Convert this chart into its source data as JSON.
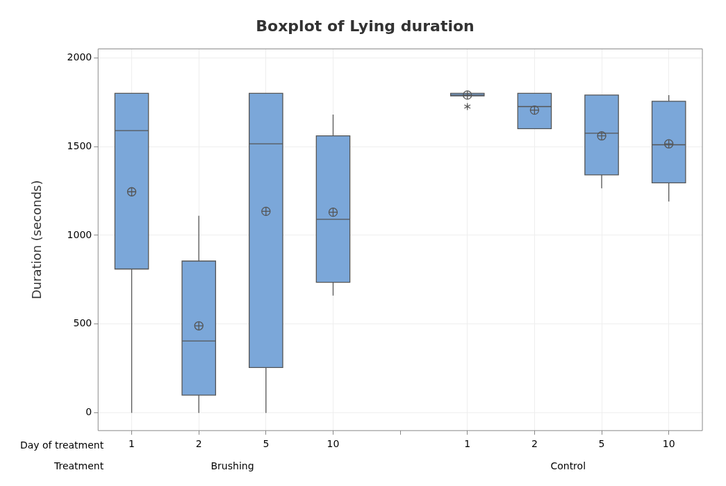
{
  "chart_data": {
    "type": "box",
    "title": "Boxplot of Lying duration",
    "ylabel": "Duration (seconds)",
    "categories": [
      "1",
      "2",
      "5",
      "10",
      null,
      "1",
      "2",
      "5",
      "10"
    ],
    "annotations": [
      "Day of treatment",
      "Treatment",
      "Brushing",
      "Control"
    ],
    "color": "#7ba7d9",
    "boxes": [
      {
        "low": 0,
        "q1": 810,
        "median": 1590,
        "q3": 1800,
        "high": 1800,
        "mean": 1245
      },
      {
        "low": 0,
        "q1": 100,
        "median": 405,
        "q3": 855,
        "high": 1110,
        "mean": 490
      },
      {
        "low": 0,
        "q1": 255,
        "median": 1515,
        "q3": 1800,
        "high": 1800,
        "mean": 1135
      },
      {
        "low": 660,
        "q1": 735,
        "median": 1090,
        "q3": 1560,
        "high": 1680,
        "mean": 1130
      },
      null,
      {
        "low": 1785,
        "q1": 1785,
        "median": 1790,
        "q3": 1800,
        "high": 1800,
        "mean": 1790,
        "outliers": [
          1725
        ]
      },
      {
        "low": 1600,
        "q1": 1600,
        "median": 1725,
        "q3": 1800,
        "high": 1800,
        "mean": 1705
      },
      {
        "low": 1265,
        "q1": 1340,
        "median": 1575,
        "q3": 1790,
        "high": 1790,
        "mean": 1560
      },
      {
        "low": 1190,
        "q1": 1295,
        "median": 1510,
        "q3": 1755,
        "high": 1790,
        "mean": 1515
      }
    ],
    "ylim": [
      -100,
      2050
    ],
    "yticks": [
      0,
      500,
      1000,
      1500,
      2000
    ],
    "grid": true
  }
}
